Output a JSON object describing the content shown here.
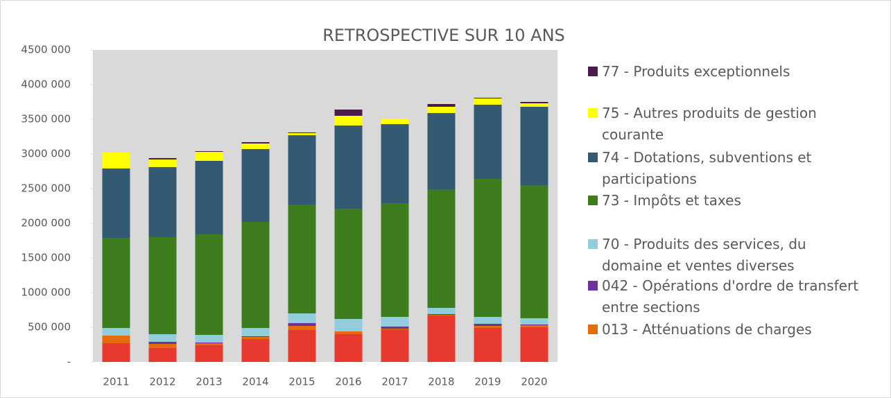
{
  "chart_data": {
    "type": "stacked_bar",
    "title": "RETROSPECTIVE SUR 10 ANS",
    "categories": [
      "2011",
      "2012",
      "2013",
      "2014",
      "2015",
      "2016",
      "2017",
      "2018",
      "2019",
      "2020"
    ],
    "series": [
      {
        "color": "#e8392e",
        "values": [
          270000,
          200000,
          240000,
          330000,
          460000,
          400000,
          470000,
          670000,
          490000,
          500000
        ]
      },
      {
        "name": "013 - Atténuations de charges",
        "color": "#e46c0a",
        "values": [
          110000,
          60000,
          30000,
          30000,
          60000,
          40000,
          10000,
          10000,
          30000,
          30000
        ]
      },
      {
        "name": "042 - Opérations d'ordre de transfert entre sections",
        "color": "#7030a0",
        "values": [
          0,
          30000,
          10000,
          10000,
          40000,
          0,
          30000,
          10000,
          30000,
          10000
        ]
      },
      {
        "name": "70 - Produits des services, du domaine et ventes diverses",
        "color": "#92cddc",
        "values": [
          110000,
          110000,
          110000,
          120000,
          140000,
          180000,
          140000,
          90000,
          100000,
          90000
        ]
      },
      {
        "name": "73 - Impôts et taxes",
        "color": "#3e7d1e",
        "values": [
          1300000,
          1400000,
          1450000,
          1530000,
          1570000,
          1590000,
          1640000,
          1710000,
          1990000,
          1920000
        ]
      },
      {
        "name": "74 - Dotations, subventions et participations",
        "color": "#345a73",
        "values": [
          1000000,
          1010000,
          1060000,
          1050000,
          1000000,
          1200000,
          1140000,
          1100000,
          1070000,
          1130000
        ]
      },
      {
        "name": "75 - Autres produits de gestion courante",
        "color": "#ffff00",
        "values": [
          230000,
          110000,
          130000,
          80000,
          30000,
          140000,
          80000,
          90000,
          90000,
          50000
        ]
      },
      {
        "name": "77 - Produits exceptionnels",
        "color": "#4b1c4b",
        "values": [
          0,
          20000,
          10000,
          20000,
          10000,
          90000,
          0,
          40000,
          10000,
          20000
        ]
      }
    ],
    "ylim": [
      0,
      4500000
    ],
    "yticks": [
      {
        "value": 0,
        "label": "-"
      },
      {
        "value": 500000,
        "label": "500 000"
      },
      {
        "value": 1000000,
        "label": "1000 000"
      },
      {
        "value": 1500000,
        "label": "1500 000"
      },
      {
        "value": 2000000,
        "label": "2000 000"
      },
      {
        "value": 2500000,
        "label": "2500 000"
      },
      {
        "value": 3000000,
        "label": "3000 000"
      },
      {
        "value": 3500000,
        "label": "3500 000"
      },
      {
        "value": 4000000,
        "label": "4000 000"
      },
      {
        "value": 4500000,
        "label": "4500 000"
      }
    ],
    "legend": "right"
  }
}
